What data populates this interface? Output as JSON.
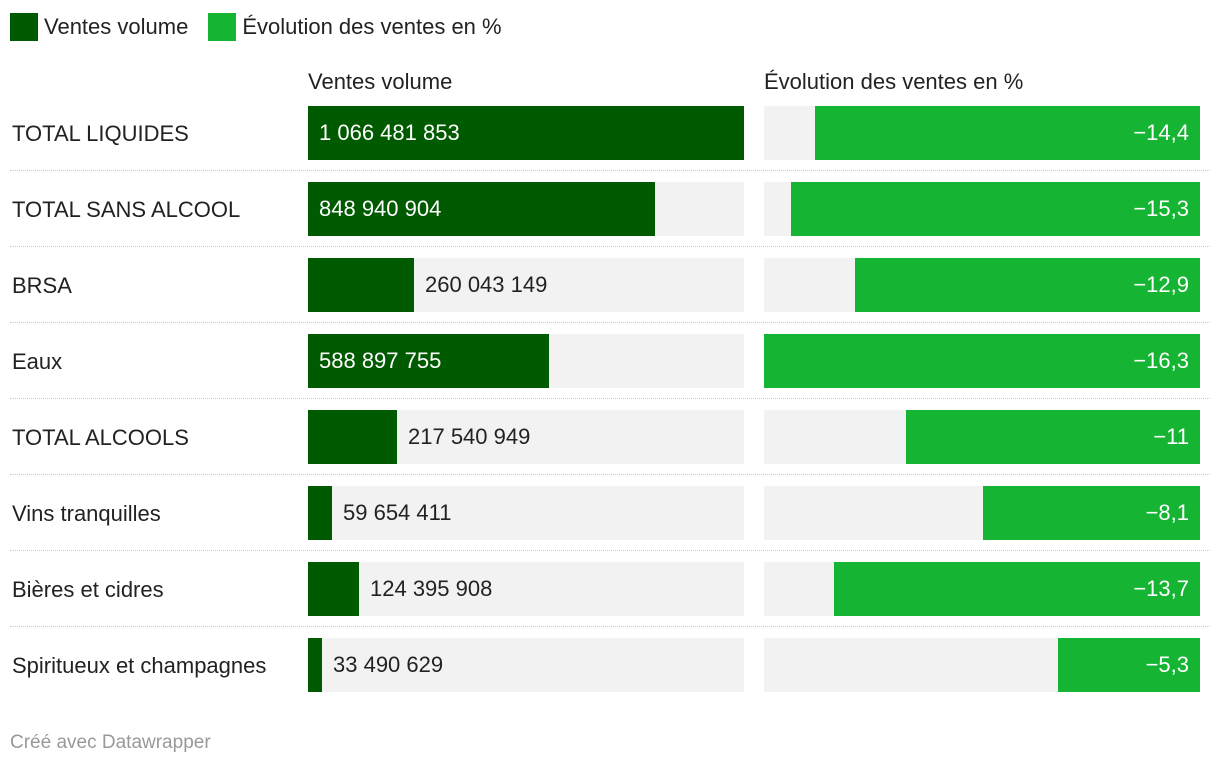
{
  "legend": [
    {
      "label": "Ventes volume",
      "color": "#005a00"
    },
    {
      "label": "Évolution des ventes en %",
      "color": "#15b432"
    }
  ],
  "headers": {
    "volume": "Ventes volume",
    "evolution": "Évolution des ventes en %"
  },
  "footer": "Créé avec Datawrapper",
  "colors": {
    "volume": "#005a00",
    "evolution": "#15b432",
    "background": "#f2f2f2"
  },
  "chart_data": {
    "type": "table",
    "title": "",
    "columns": [
      "Ventes volume",
      "Évolution des ventes en %"
    ],
    "volume_max": 1066481853,
    "evolution_max_abs": 16.3,
    "rows": [
      {
        "label": "TOTAL LIQUIDES",
        "volume": 1066481853,
        "volume_label": "1 066 481 853",
        "evolution": -14.4,
        "evolution_label": "−14,4"
      },
      {
        "label": "TOTAL SANS ALCOOL",
        "volume": 848940904,
        "volume_label": "848 940 904",
        "evolution": -15.3,
        "evolution_label": "−15,3"
      },
      {
        "label": "BRSA",
        "volume": 260043149,
        "volume_label": "260 043 149",
        "evolution": -12.9,
        "evolution_label": "−12,9"
      },
      {
        "label": "Eaux",
        "volume": 588897755,
        "volume_label": "588 897 755",
        "evolution": -16.3,
        "evolution_label": "−16,3"
      },
      {
        "label": "TOTAL ALCOOLS",
        "volume": 217540949,
        "volume_label": "217 540 949",
        "evolution": -11,
        "evolution_label": "−11"
      },
      {
        "label": "Vins tranquilles",
        "volume": 59654411,
        "volume_label": "59 654 411",
        "evolution": -8.1,
        "evolution_label": "−8,1"
      },
      {
        "label": "Bières et cidres",
        "volume": 124395908,
        "volume_label": "124 395 908",
        "evolution": -13.7,
        "evolution_label": "−13,7"
      },
      {
        "label": "Spiritueux et champagnes",
        "volume": 33490629,
        "volume_label": "33 490 629",
        "evolution": -5.3,
        "evolution_label": "−5,3"
      }
    ]
  }
}
